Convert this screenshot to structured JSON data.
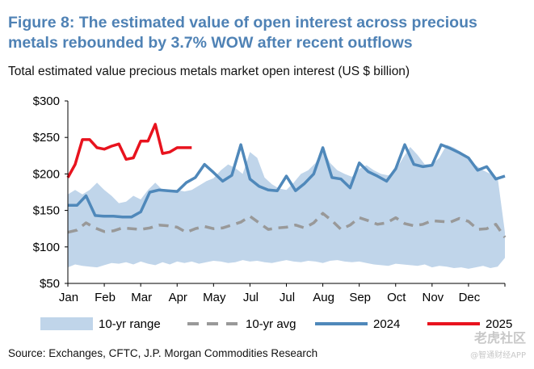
{
  "title": "Figure 8: The estimated value of open interest across precious metals rebounded by 3.7% WOW after recent outflows",
  "subtitle": "Total estimated value precious metals market open interest (US $ billion)",
  "source": "Source: Exchanges, CFTC, J.P. Morgan Commodities Research",
  "watermark": {
    "main": "老虎社区",
    "sub": "@智通财经APP"
  },
  "colors": {
    "title": "#4f82b5",
    "range": "#c0d5ea",
    "avg": "#999999",
    "y2024": "#4f88ba",
    "y2025": "#e8131e"
  },
  "chart_data": {
    "type": "area",
    "ylabel": "",
    "ylim": [
      50,
      300
    ],
    "yticks": [
      50,
      100,
      150,
      200,
      250,
      300
    ],
    "ytick_labels": [
      "$50",
      "$100",
      "$150",
      "$200",
      "$250",
      "$300"
    ],
    "xlim": [
      0,
      12
    ],
    "month_labels": [
      "Jan",
      "Feb",
      "Mar",
      "Apr",
      "May",
      "Jul",
      "Jul",
      "Aug",
      "Sep",
      "Oct",
      "Nov",
      "Dec"
    ],
    "grid": false,
    "legend": {
      "position": "bottom",
      "entries": [
        "10-yr range",
        "10-yr avg",
        "2024",
        "2025"
      ]
    },
    "series": [
      {
        "name": "10-yr range",
        "kind": "range",
        "x": [
          0,
          0.2,
          0.4,
          0.6,
          0.8,
          1.0,
          1.2,
          1.4,
          1.6,
          1.8,
          2.0,
          2.2,
          2.4,
          2.6,
          2.8,
          3.0,
          3.2,
          3.4,
          3.6,
          3.8,
          4.0,
          4.2,
          4.4,
          4.6,
          4.8,
          5.0,
          5.2,
          5.4,
          5.6,
          5.8,
          6.0,
          6.2,
          6.4,
          6.6,
          6.8,
          7.0,
          7.2,
          7.4,
          7.6,
          7.8,
          8.0,
          8.2,
          8.4,
          8.6,
          8.8,
          9.0,
          9.2,
          9.4,
          9.6,
          9.8,
          10.0,
          10.2,
          10.4,
          10.6,
          10.8,
          11.0,
          11.2,
          11.4,
          11.6,
          11.8,
          12.0
        ],
        "low": [
          72,
          76,
          74,
          73,
          72,
          75,
          78,
          77,
          79,
          76,
          80,
          77,
          75,
          79,
          76,
          80,
          78,
          80,
          77,
          79,
          81,
          80,
          78,
          79,
          82,
          80,
          81,
          79,
          78,
          80,
          82,
          80,
          79,
          81,
          80,
          78,
          81,
          82,
          80,
          79,
          80,
          78,
          76,
          75,
          74,
          77,
          76,
          75,
          74,
          76,
          72,
          74,
          73,
          71,
          72,
          70,
          72,
          74,
          71,
          73,
          85
        ],
        "high": [
          172,
          178,
          172,
          178,
          188,
          178,
          170,
          160,
          162,
          170,
          165,
          178,
          188,
          178,
          178,
          178,
          176,
          178,
          184,
          190,
          194,
          205,
          213,
          208,
          200,
          230,
          222,
          195,
          186,
          180,
          178,
          188,
          200,
          205,
          215,
          236,
          215,
          205,
          200,
          196,
          207,
          212,
          205,
          200,
          198,
          205,
          222,
          237,
          226,
          213,
          213,
          222,
          240,
          236,
          230,
          222,
          212,
          205,
          200,
          195,
          120
        ]
      },
      {
        "name": "10-yr avg",
        "kind": "dashed",
        "x": [
          0,
          0.25,
          0.5,
          0.75,
          1.0,
          1.25,
          1.5,
          1.75,
          2.0,
          2.25,
          2.5,
          2.75,
          3.0,
          3.25,
          3.5,
          3.75,
          4.0,
          4.25,
          4.5,
          4.75,
          5.0,
          5.25,
          5.5,
          5.75,
          6.0,
          6.25,
          6.5,
          6.75,
          7.0,
          7.25,
          7.5,
          7.75,
          8.0,
          8.25,
          8.5,
          8.75,
          9.0,
          9.25,
          9.5,
          9.75,
          10.0,
          10.25,
          10.5,
          10.75,
          11.0,
          11.25,
          11.5,
          11.75,
          12.0
        ],
        "values": [
          120,
          123,
          133,
          126,
          121,
          122,
          126,
          125,
          124,
          126,
          130,
          129,
          127,
          120,
          125,
          128,
          125,
          126,
          130,
          134,
          142,
          133,
          124,
          126,
          127,
          130,
          126,
          133,
          146,
          136,
          124,
          130,
          140,
          136,
          131,
          133,
          140,
          132,
          129,
          131,
          136,
          135,
          134,
          139,
          135,
          124,
          125,
          131,
          113
        ]
      },
      {
        "name": "2024",
        "kind": "line",
        "x": [
          0,
          0.25,
          0.5,
          0.75,
          1.0,
          1.25,
          1.5,
          1.75,
          2.0,
          2.25,
          2.5,
          2.75,
          3.0,
          3.25,
          3.5,
          3.75,
          4.0,
          4.25,
          4.5,
          4.75,
          5.0,
          5.25,
          5.5,
          5.75,
          6.0,
          6.25,
          6.5,
          6.75,
          7.0,
          7.25,
          7.5,
          7.75,
          8.0,
          8.25,
          8.5,
          8.75,
          9.0,
          9.25,
          9.5,
          9.75,
          10.0,
          10.25,
          10.5,
          10.75,
          11.0,
          11.25,
          11.5,
          11.75,
          12.0
        ],
        "values": [
          157,
          157,
          170,
          143,
          142,
          142,
          141,
          141,
          148,
          175,
          178,
          177,
          176,
          188,
          195,
          213,
          202,
          190,
          198,
          240,
          193,
          183,
          178,
          177,
          197,
          177,
          187,
          200,
          236,
          195,
          193,
          181,
          215,
          203,
          197,
          190,
          207,
          240,
          213,
          210,
          212,
          240,
          235,
          229,
          222,
          205,
          210,
          193,
          197
        ]
      },
      {
        "name": "2025",
        "kind": "line",
        "x": [
          0,
          0.2,
          0.4,
          0.6,
          0.8,
          1.0,
          1.2,
          1.4,
          1.6,
          1.8,
          2.0,
          2.2,
          2.4,
          2.6,
          2.8,
          3.0,
          3.2,
          3.4
        ],
        "values": [
          195,
          213,
          247,
          247,
          236,
          234,
          238,
          241,
          220,
          222,
          245,
          245,
          268,
          228,
          230,
          236,
          236,
          236
        ]
      }
    ]
  }
}
